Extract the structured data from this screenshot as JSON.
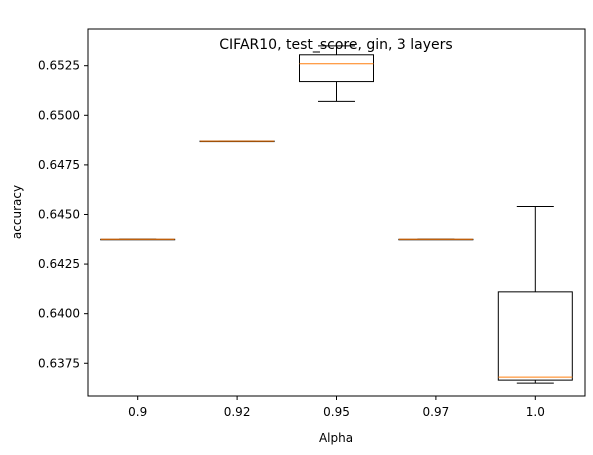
{
  "chart_data": {
    "type": "box",
    "title": "CIFAR10, test_score, gin, 3 layers",
    "xlabel": "Alpha",
    "ylabel": "accuracy",
    "categories": [
      "0.9",
      "0.92",
      "0.95",
      "0.97",
      "1.0"
    ],
    "boxes": [
      {
        "whisker_low": 0.64375,
        "q1": 0.64375,
        "median": 0.64375,
        "q3": 0.64375,
        "whisker_high": 0.64375
      },
      {
        "whisker_low": 0.6487,
        "q1": 0.6487,
        "median": 0.6487,
        "q3": 0.6487,
        "whisker_high": 0.6487
      },
      {
        "whisker_low": 0.6507,
        "q1": 0.6517,
        "median": 0.6526,
        "q3": 0.65305,
        "whisker_high": 0.6535
      },
      {
        "whisker_low": 0.64375,
        "q1": 0.64375,
        "median": 0.64375,
        "q3": 0.64375,
        "whisker_high": 0.64375
      },
      {
        "whisker_low": 0.6365,
        "q1": 0.63665,
        "median": 0.6368,
        "q3": 0.6411,
        "whisker_high": 0.6454
      }
    ],
    "yticks": [
      0.6375,
      0.64,
      0.6425,
      0.645,
      0.6475,
      0.65,
      0.6525
    ],
    "ytick_labels": [
      "0.6375",
      "0.6400",
      "0.6425",
      "0.6450",
      "0.6475",
      "0.6500",
      "0.6525"
    ],
    "ylim": [
      0.63585,
      0.65435
    ],
    "grid": false,
    "colors": {
      "box": "#000000",
      "median": "#ff7f0e",
      "axes": "#000000"
    }
  }
}
